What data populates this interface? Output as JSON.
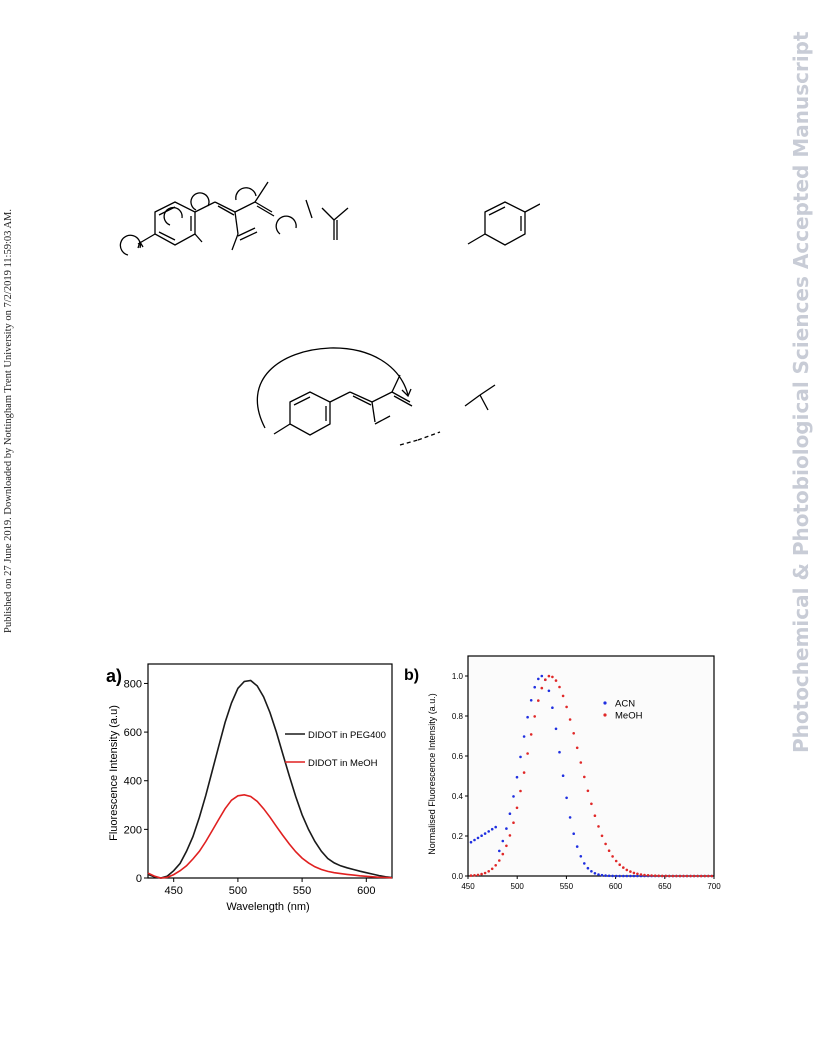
{
  "side_note": "Published on 27 June 2019. Downloaded by Nottingham Trent University on 7/2/2019 11:59:03 AM.",
  "watermark": "Photochemical & Photobiological Sciences Accepted Manuscript",
  "chart_data": [
    {
      "panel": "a)",
      "type": "line",
      "xlabel": "Wavelength (nm)",
      "ylabel": "Fluorescence Intensity (a.u)",
      "xlim": [
        430,
        620
      ],
      "ylim": [
        0,
        880
      ],
      "xticks": [
        "450",
        "500",
        "550",
        "600"
      ],
      "yticks": [
        "0",
        "200",
        "400",
        "600",
        "800"
      ],
      "legend_position": "right",
      "series": [
        {
          "name": "DIDOT in PEG400",
          "color": "#1a1a1a",
          "x": [
            430,
            435,
            440,
            445,
            450,
            455,
            460,
            465,
            470,
            475,
            480,
            485,
            490,
            495,
            500,
            505,
            510,
            515,
            520,
            525,
            530,
            535,
            540,
            545,
            550,
            555,
            560,
            565,
            570,
            575,
            580,
            585,
            590,
            595,
            600,
            605,
            610,
            615,
            620
          ],
          "y": [
            15,
            5,
            0,
            8,
            30,
            60,
            110,
            170,
            250,
            340,
            440,
            540,
            640,
            720,
            780,
            808,
            812,
            790,
            745,
            680,
            600,
            510,
            420,
            335,
            260,
            200,
            150,
            110,
            80,
            62,
            50,
            42,
            35,
            28,
            22,
            16,
            10,
            5,
            2
          ]
        },
        {
          "name": "DIDOT in MeOH",
          "color": "#e02020",
          "x": [
            430,
            435,
            440,
            445,
            450,
            455,
            460,
            465,
            470,
            475,
            480,
            485,
            490,
            495,
            500,
            505,
            510,
            515,
            520,
            525,
            530,
            535,
            540,
            545,
            550,
            555,
            560,
            565,
            570,
            575,
            580,
            585,
            590,
            595,
            600,
            605,
            610,
            615,
            620
          ],
          "y": [
            20,
            8,
            0,
            3,
            14,
            30,
            50,
            78,
            110,
            150,
            195,
            240,
            285,
            320,
            338,
            342,
            335,
            315,
            285,
            250,
            212,
            175,
            140,
            108,
            82,
            62,
            46,
            35,
            27,
            22,
            18,
            15,
            12,
            9,
            7,
            5,
            3,
            2,
            1
          ]
        }
      ]
    },
    {
      "panel": "b)",
      "type": "scatter",
      "xlabel": "",
      "ylabel": "Normalised Fluorescence Intensity (a.u.)",
      "xlim": [
        450,
        700
      ],
      "ylim": [
        0,
        1.1
      ],
      "xticks": [
        "450",
        "500",
        "550",
        "600",
        "650",
        "700"
      ],
      "yticks": [
        "0.0",
        "0.2",
        "0.4",
        "0.6",
        "0.8",
        "1.0"
      ],
      "legend_position": "right",
      "series": [
        {
          "name": "ACN",
          "color": "#1f2fe0",
          "peak": 525,
          "width_left": 30,
          "width_right": 26
        },
        {
          "name": "MeOH",
          "color": "#e02828",
          "peak": 533,
          "width_left": 32,
          "width_right": 42
        }
      ]
    }
  ]
}
